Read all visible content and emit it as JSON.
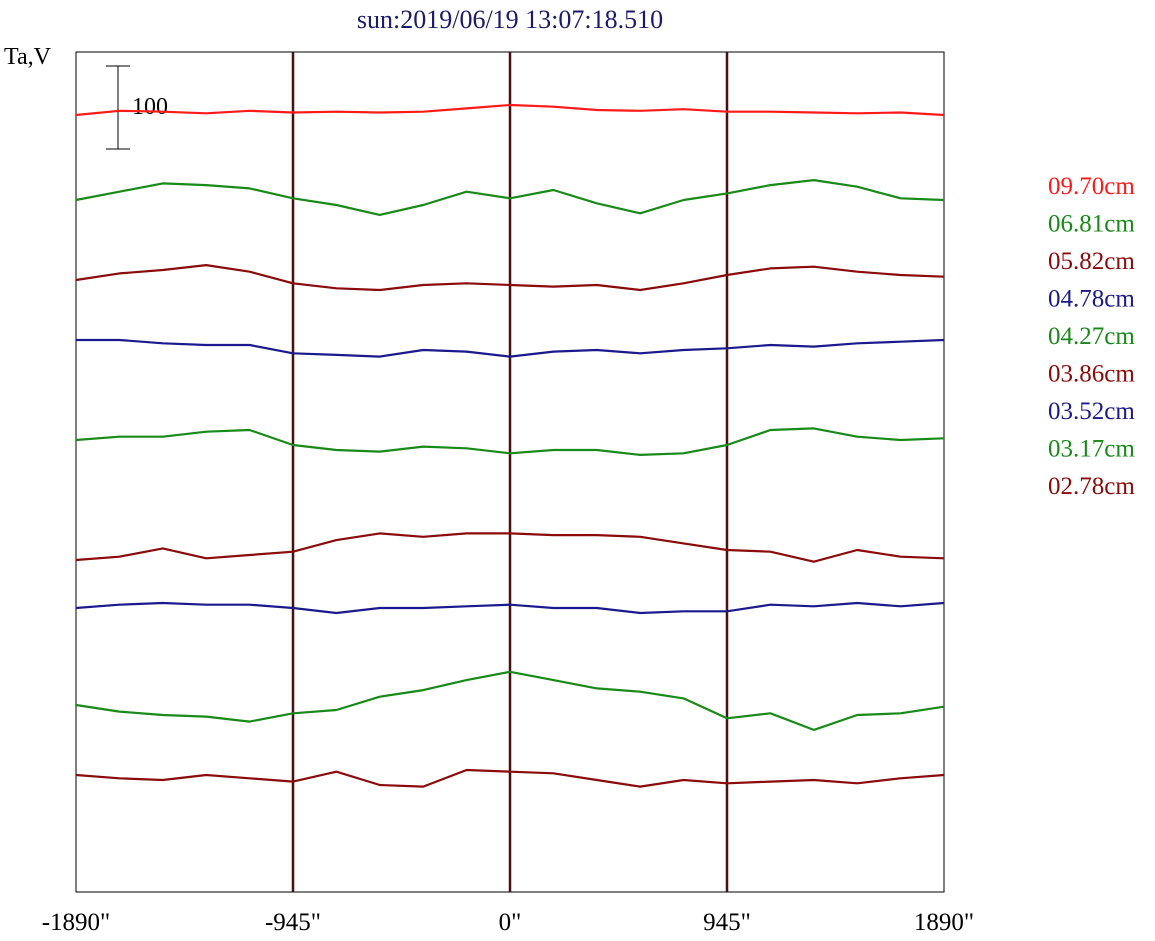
{
  "header": {
    "title": "sun:2019/06/19 13:07:18.510"
  },
  "chart_data": {
    "type": "line",
    "title": "sun:2019/06/19 13:07:18.510",
    "ylabel": "Ta,V",
    "xlabel": "",
    "x_ticks": [
      -1890,
      -945,
      0,
      945,
      1890
    ],
    "x_tick_labels": [
      "-1890\"",
      "-945\"",
      "0\"",
      "945\"",
      "1890\""
    ],
    "xlim": [
      -1890,
      1890
    ],
    "vertical_markers": [
      -945,
      0,
      945
    ],
    "scale_bar": {
      "label": "100",
      "value": 100
    },
    "grid": false,
    "legend_placement": "right",
    "colors": {
      "title": "#1a1a6e",
      "axis": "#000000",
      "marker_line": "#4a1010"
    },
    "x": [
      -1890,
      -1701,
      -1512,
      -1323,
      -1134,
      -945,
      -756,
      -567,
      -378,
      -189,
      0,
      189,
      378,
      567,
      756,
      945,
      1134,
      1323,
      1512,
      1701,
      1890
    ],
    "series": [
      {
        "name": "09.70cm",
        "color": "#ff1a1a",
        "baseline": 115,
        "values": [
          0,
          5,
          4,
          2,
          5,
          3,
          4,
          3,
          4,
          8,
          12,
          10,
          6,
          5,
          7,
          4,
          4,
          3,
          2,
          3,
          0
        ]
      },
      {
        "name": "06.81cm",
        "color": "#188a18",
        "baseline": 200,
        "values": [
          0,
          10,
          20,
          18,
          14,
          2,
          -6,
          -18,
          -6,
          10,
          2,
          12,
          -4,
          -16,
          0,
          8,
          18,
          24,
          16,
          2,
          0
        ]
      },
      {
        "name": "05.82cm",
        "color": "#8b0a0a",
        "baseline": 280,
        "values": [
          0,
          8,
          12,
          18,
          10,
          -4,
          -10,
          -12,
          -6,
          -4,
          -6,
          -8,
          -6,
          -12,
          -4,
          6,
          14,
          16,
          10,
          6,
          4
        ]
      },
      {
        "name": "04.78cm",
        "color": "#1a1a8e",
        "baseline": 340,
        "values": [
          0,
          0,
          -4,
          -6,
          -6,
          -16,
          -18,
          -20,
          -12,
          -14,
          -20,
          -14,
          -12,
          -16,
          -12,
          -10,
          -6,
          -8,
          -4,
          -2,
          0
        ]
      },
      {
        "name": "04.27cm",
        "color": "#188a18",
        "baseline": 440,
        "values": [
          0,
          4,
          4,
          10,
          12,
          -6,
          -12,
          -14,
          -8,
          -10,
          -16,
          -12,
          -12,
          -18,
          -16,
          -6,
          12,
          14,
          4,
          0,
          2
        ]
      },
      {
        "name": "03.86cm",
        "color": "#8b0a0a",
        "baseline": 560,
        "values": [
          0,
          4,
          14,
          2,
          6,
          10,
          24,
          32,
          28,
          32,
          32,
          30,
          30,
          28,
          20,
          12,
          10,
          -2,
          12,
          4,
          2
        ]
      },
      {
        "name": "03.52cm",
        "color": "#1a1a8e",
        "baseline": 608,
        "values": [
          0,
          4,
          6,
          4,
          4,
          0,
          -6,
          0,
          0,
          2,
          4,
          0,
          0,
          -6,
          -4,
          -4,
          4,
          2,
          6,
          2,
          6
        ]
      },
      {
        "name": "03.17cm",
        "color": "#188a18",
        "baseline": 705,
        "values": [
          0,
          -8,
          -12,
          -14,
          -20,
          -10,
          -6,
          10,
          18,
          30,
          40,
          30,
          20,
          16,
          8,
          -16,
          -10,
          -30,
          -12,
          -10,
          -2
        ]
      },
      {
        "name": "02.78cm",
        "color": "#8b0a0a",
        "baseline": 775,
        "values": [
          0,
          -4,
          -6,
          0,
          -4,
          -8,
          4,
          -12,
          -14,
          6,
          4,
          2,
          -6,
          -14,
          -6,
          -10,
          -8,
          -6,
          -10,
          -4,
          0
        ]
      }
    ]
  }
}
